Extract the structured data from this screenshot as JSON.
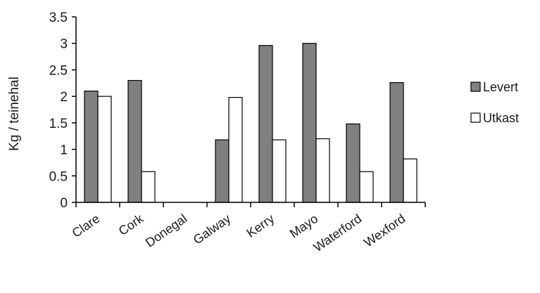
{
  "chart_data": {
    "type": "bar",
    "ylabel": "Kg / teinehal",
    "ylim": [
      0,
      3.5
    ],
    "yticks": [
      "0",
      "0.5",
      "1",
      "1.5",
      "2",
      "2.5",
      "3",
      "3.5"
    ],
    "categories": [
      "Clare",
      "Cork",
      "Donegal",
      "Galway",
      "Kerry",
      "Mayo",
      "Waterford",
      "Wexford"
    ],
    "series": [
      {
        "name": "Levert",
        "values": [
          2.1,
          2.3,
          0,
          1.18,
          2.96,
          3.0,
          1.48,
          2.26
        ],
        "color": "#808080"
      },
      {
        "name": "Utkast",
        "values": [
          2.0,
          0.58,
          0,
          1.98,
          1.18,
          1.2,
          0.58,
          0.82
        ],
        "color": "#ffffff"
      }
    ],
    "legend_position": "right",
    "grid": false
  }
}
